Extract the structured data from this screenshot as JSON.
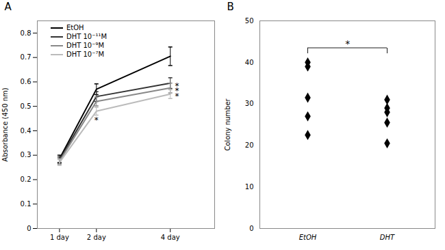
{
  "chart_data": [
    {
      "type": "line",
      "title": "A",
      "x": [
        1,
        2,
        4
      ],
      "xlim": [
        0.4,
        5.2
      ],
      "xticks": [
        {
          "value": 1,
          "label": "1 day"
        },
        {
          "value": 2,
          "label": "2 day"
        },
        {
          "value": 4,
          "label": "4 day"
        }
      ],
      "ylim": [
        0,
        0.85
      ],
      "yticks": [
        0,
        0.1,
        0.2,
        0.3,
        0.4,
        0.5,
        0.6,
        0.7,
        0.8
      ],
      "ylabel": "Absorbance (450 nm)",
      "legend": "upper left",
      "series": [
        {
          "name": "EtOH",
          "color": "#000000",
          "values": [
            0.285,
            0.57,
            0.705
          ],
          "yerr": [
            0.015,
            0.022,
            0.038
          ]
        },
        {
          "name": "DHT 10⁻¹¹M",
          "color": "#333333",
          "values": [
            0.28,
            0.54,
            0.595
          ],
          "yerr": [
            0.013,
            0.02,
            0.022
          ]
        },
        {
          "name": "DHT 10⁻⁹M",
          "color": "#888888",
          "values": [
            0.275,
            0.52,
            0.575
          ],
          "yerr": [
            0.012,
            0.018,
            0.02
          ]
        },
        {
          "name": "DHT 10⁻⁷M",
          "color": "#bbbbbb",
          "values": [
            0.27,
            0.48,
            0.55
          ],
          "yerr": [
            0.012,
            0.016,
            0.018
          ]
        }
      ],
      "annotations": [
        {
          "text": "*",
          "x": 2.0,
          "y": 0.455
        },
        {
          "text": "*",
          "x": 4.18,
          "y": 0.595
        },
        {
          "text": "*",
          "x": 4.18,
          "y": 0.575
        },
        {
          "text": "*",
          "x": 4.18,
          "y": 0.555
        }
      ]
    },
    {
      "type": "scatter",
      "title": "B",
      "categories": [
        "EtOH",
        "DHT"
      ],
      "values": [
        [
          40.0,
          39.0,
          31.5,
          27.0,
          22.5
        ],
        [
          31.0,
          29.0,
          28.0,
          25.5,
          20.5
        ]
      ],
      "color": "#000000",
      "marker": "diamond",
      "ylim": [
        0,
        50
      ],
      "yticks": [
        0,
        10,
        20,
        30,
        40,
        50
      ],
      "ylabel": "Colony number",
      "annotations": [
        {
          "text": "*",
          "x1": "EtOH",
          "x2": "DHT",
          "y": 43.5
        }
      ]
    }
  ]
}
